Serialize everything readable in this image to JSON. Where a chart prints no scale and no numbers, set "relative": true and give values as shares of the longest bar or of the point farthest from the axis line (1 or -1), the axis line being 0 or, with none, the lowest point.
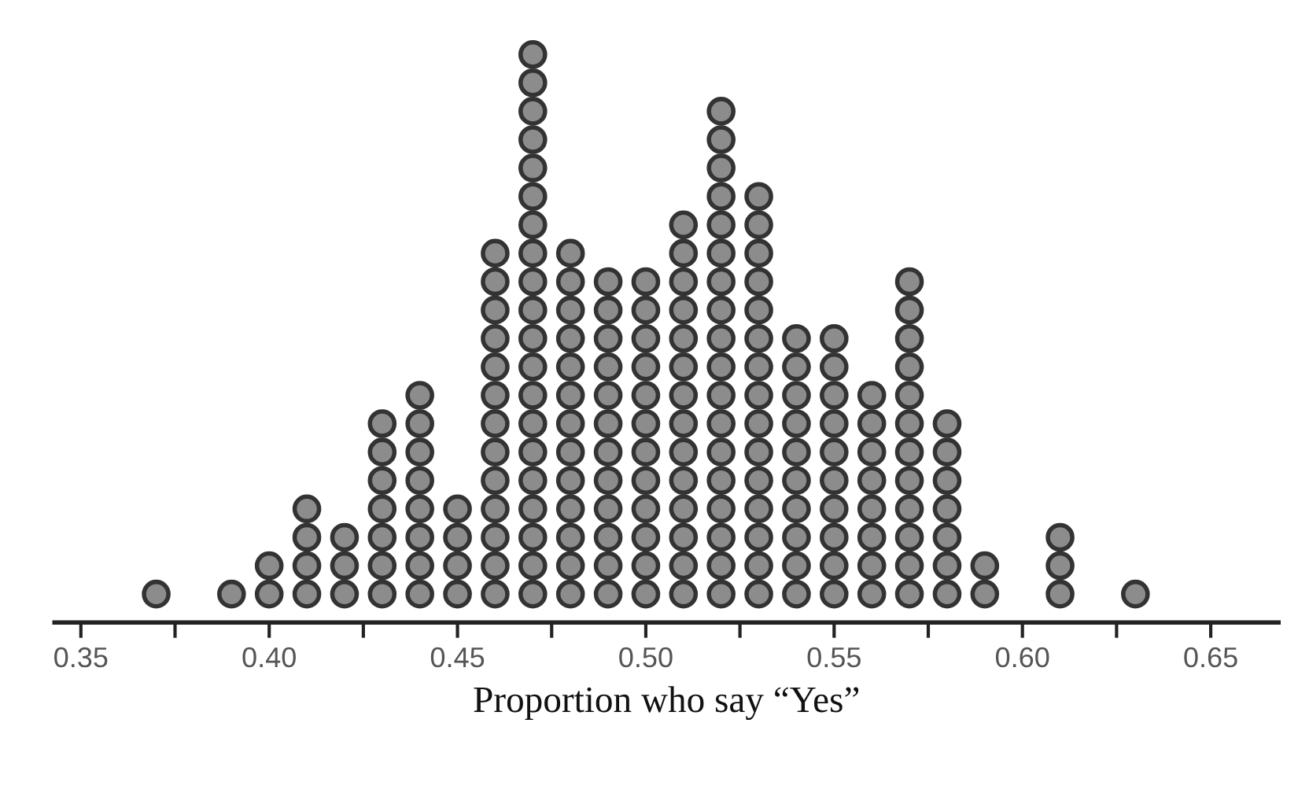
{
  "chart_data": {
    "type": "scatter",
    "marker": "circle",
    "relative": true,
    "xlabel": "Proportion who say “Yes”",
    "series": [
      {
        "color": "#8c8c8c",
        "x": [
          0.37
        ],
        "values": [
          0.05
        ]
      },
      {
        "color": "#8c8c8c",
        "x": [
          0.39
        ],
        "values": [
          0.05
        ]
      },
      {
        "color": "#8c8c8c",
        "x": [
          0.4,
          0.4
        ],
        "values": [
          0.05,
          0.1
        ]
      },
      {
        "color": "#8c8c8c",
        "x": [
          0.41,
          0.41,
          0.41,
          0.41
        ],
        "values": [
          0.05,
          0.1,
          0.15,
          0.2
        ]
      },
      {
        "color": "#8c8c8c",
        "x": [
          0.42,
          0.42,
          0.42
        ],
        "values": [
          0.05,
          0.1,
          0.15
        ]
      },
      {
        "color": "#8c8c8c",
        "x": [
          0.43,
          0.43,
          0.43,
          0.43,
          0.43,
          0.43,
          0.43
        ],
        "values": [
          0.05,
          0.1,
          0.15,
          0.2,
          0.25,
          0.3,
          0.35
        ]
      },
      {
        "color": "#8c8c8c",
        "x": [
          0.44,
          0.44,
          0.44,
          0.44,
          0.44,
          0.44,
          0.44,
          0.44
        ],
        "values": [
          0.05,
          0.1,
          0.15,
          0.2,
          0.25,
          0.3,
          0.35,
          0.4
        ]
      },
      {
        "color": "#8c8c8c",
        "x": [
          0.45,
          0.45,
          0.45,
          0.45
        ],
        "values": [
          0.05,
          0.1,
          0.15,
          0.2
        ]
      },
      {
        "color": "#8c8c8c",
        "x": [
          0.46,
          0.46,
          0.46,
          0.46,
          0.46,
          0.46,
          0.46,
          0.46,
          0.46,
          0.46,
          0.46,
          0.46,
          0.46
        ],
        "values": [
          0.05,
          0.1,
          0.15,
          0.2,
          0.25,
          0.3,
          0.35,
          0.4,
          0.45,
          0.5,
          0.55,
          0.6,
          0.65
        ]
      },
      {
        "color": "#8c8c8c",
        "x": [
          0.47,
          0.47,
          0.47,
          0.47,
          0.47,
          0.47,
          0.47,
          0.47,
          0.47,
          0.47,
          0.47,
          0.47,
          0.47,
          0.47,
          0.47,
          0.47,
          0.47,
          0.47,
          0.47,
          0.47
        ],
        "values": [
          0.05,
          0.1,
          0.15,
          0.2,
          0.25,
          0.3,
          0.35,
          0.4,
          0.45,
          0.5,
          0.55,
          0.6,
          0.65,
          0.7,
          0.75,
          0.8,
          0.85,
          0.9,
          0.95,
          1
        ]
      },
      {
        "color": "#8c8c8c",
        "x": [
          0.48,
          0.48,
          0.48,
          0.48,
          0.48,
          0.48,
          0.48,
          0.48,
          0.48,
          0.48,
          0.48,
          0.48,
          0.48
        ],
        "values": [
          0.05,
          0.1,
          0.15,
          0.2,
          0.25,
          0.3,
          0.35,
          0.4,
          0.45,
          0.5,
          0.55,
          0.6,
          0.65
        ]
      },
      {
        "color": "#8c8c8c",
        "x": [
          0.49,
          0.49,
          0.49,
          0.49,
          0.49,
          0.49,
          0.49,
          0.49,
          0.49,
          0.49,
          0.49,
          0.49
        ],
        "values": [
          0.05,
          0.1,
          0.15,
          0.2,
          0.25,
          0.3,
          0.35,
          0.4,
          0.45,
          0.5,
          0.55,
          0.6
        ]
      },
      {
        "color": "#8c8c8c",
        "x": [
          0.5,
          0.5,
          0.5,
          0.5,
          0.5,
          0.5,
          0.5,
          0.5,
          0.5,
          0.5,
          0.5,
          0.5
        ],
        "values": [
          0.05,
          0.1,
          0.15,
          0.2,
          0.25,
          0.3,
          0.35,
          0.4,
          0.45,
          0.5,
          0.55,
          0.6
        ]
      },
      {
        "color": "#8c8c8c",
        "x": [
          0.51,
          0.51,
          0.51,
          0.51,
          0.51,
          0.51,
          0.51,
          0.51,
          0.51,
          0.51,
          0.51,
          0.51,
          0.51,
          0.51
        ],
        "values": [
          0.05,
          0.1,
          0.15,
          0.2,
          0.25,
          0.3,
          0.35,
          0.4,
          0.45,
          0.5,
          0.55,
          0.6,
          0.65,
          0.7
        ]
      },
      {
        "color": "#8c8c8c",
        "x": [
          0.52,
          0.52,
          0.52,
          0.52,
          0.52,
          0.52,
          0.52,
          0.52,
          0.52,
          0.52,
          0.52,
          0.52,
          0.52,
          0.52,
          0.52,
          0.52,
          0.52,
          0.52
        ],
        "values": [
          0.05,
          0.1,
          0.15,
          0.2,
          0.25,
          0.3,
          0.35,
          0.4,
          0.45,
          0.5,
          0.55,
          0.6,
          0.65,
          0.7,
          0.75,
          0.8,
          0.85,
          0.9
        ]
      },
      {
        "color": "#8c8c8c",
        "x": [
          0.53,
          0.53,
          0.53,
          0.53,
          0.53,
          0.53,
          0.53,
          0.53,
          0.53,
          0.53,
          0.53,
          0.53,
          0.53,
          0.53,
          0.53
        ],
        "values": [
          0.05,
          0.1,
          0.15,
          0.2,
          0.25,
          0.3,
          0.35,
          0.4,
          0.45,
          0.5,
          0.55,
          0.6,
          0.65,
          0.7,
          0.75
        ]
      },
      {
        "color": "#8c8c8c",
        "x": [
          0.54,
          0.54,
          0.54,
          0.54,
          0.54,
          0.54,
          0.54,
          0.54,
          0.54,
          0.54
        ],
        "values": [
          0.05,
          0.1,
          0.15,
          0.2,
          0.25,
          0.3,
          0.35,
          0.4,
          0.45,
          0.5
        ]
      },
      {
        "color": "#8c8c8c",
        "x": [
          0.55,
          0.55,
          0.55,
          0.55,
          0.55,
          0.55,
          0.55,
          0.55,
          0.55,
          0.55
        ],
        "values": [
          0.05,
          0.1,
          0.15,
          0.2,
          0.25,
          0.3,
          0.35,
          0.4,
          0.45,
          0.5
        ]
      },
      {
        "color": "#8c8c8c",
        "x": [
          0.56,
          0.56,
          0.56,
          0.56,
          0.56,
          0.56,
          0.56,
          0.56
        ],
        "values": [
          0.05,
          0.1,
          0.15,
          0.2,
          0.25,
          0.3,
          0.35,
          0.4
        ]
      },
      {
        "color": "#8c8c8c",
        "x": [
          0.57,
          0.57,
          0.57,
          0.57,
          0.57,
          0.57,
          0.57,
          0.57,
          0.57,
          0.57,
          0.57,
          0.57
        ],
        "values": [
          0.05,
          0.1,
          0.15,
          0.2,
          0.25,
          0.3,
          0.35,
          0.4,
          0.45,
          0.5,
          0.55,
          0.6
        ]
      },
      {
        "color": "#8c8c8c",
        "x": [
          0.58,
          0.58,
          0.58,
          0.58,
          0.58,
          0.58,
          0.58
        ],
        "values": [
          0.05,
          0.1,
          0.15,
          0.2,
          0.25,
          0.3,
          0.35
        ]
      },
      {
        "color": "#8c8c8c",
        "x": [
          0.59,
          0.59
        ],
        "values": [
          0.05,
          0.1
        ]
      },
      {
        "color": "#8c8c8c",
        "x": [
          0.61,
          0.61,
          0.61
        ],
        "values": [
          0.05,
          0.1,
          0.15
        ]
      },
      {
        "color": "#8c8c8c",
        "x": [
          0.63
        ],
        "values": [
          0.05
        ]
      }
    ],
    "xlim": [
      0.343,
      0.668
    ],
    "xticks": [
      0.35,
      {
        "value": 0.375,
        "label": null
      },
      {
        "value": 0.4,
        "label": "0.40"
      },
      {
        "value": 0.425,
        "label": null
      },
      0.45,
      {
        "value": 0.475,
        "label": null
      },
      {
        "value": 0.5,
        "label": "0.50"
      },
      {
        "value": 0.525,
        "label": null
      },
      0.55,
      {
        "value": 0.575,
        "label": null
      },
      {
        "value": 0.6,
        "label": "0.60"
      },
      {
        "value": 0.625,
        "label": null
      },
      0.65
    ],
    "tick_labels": "x",
    "grid": false,
    "legend": false
  }
}
